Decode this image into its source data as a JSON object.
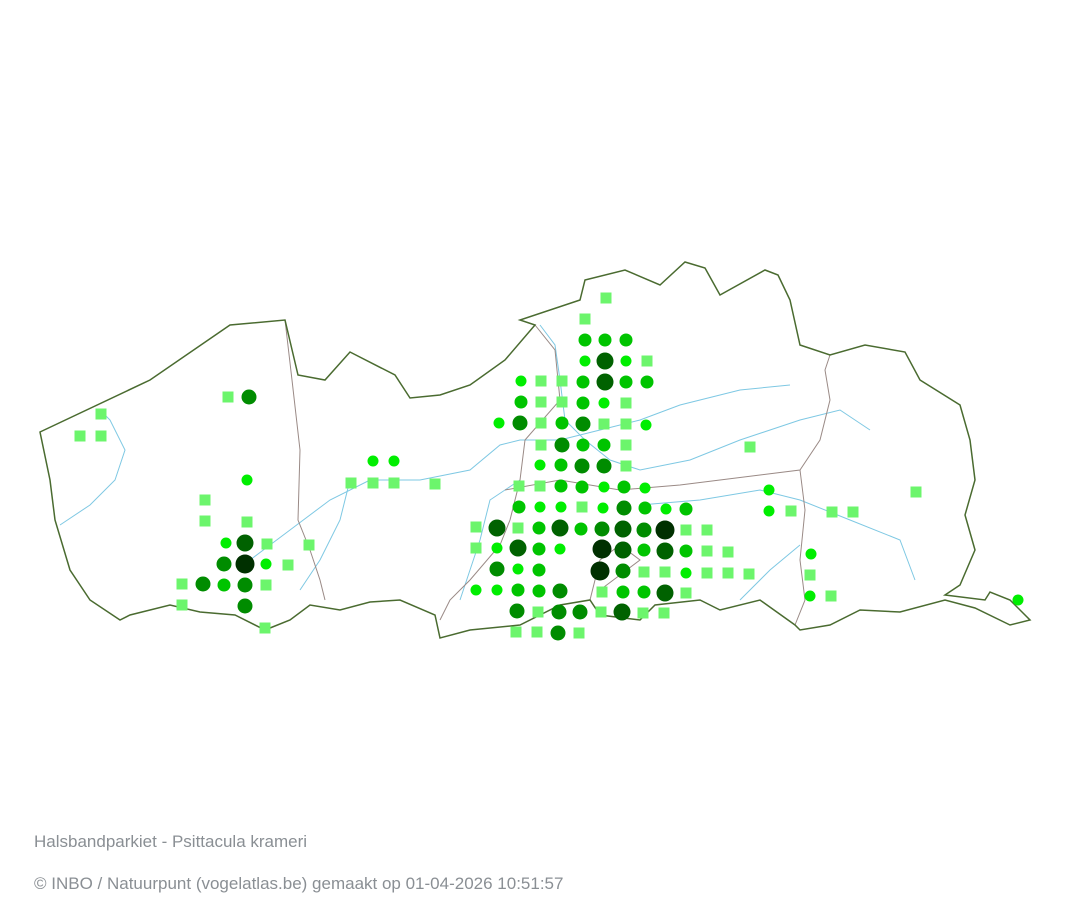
{
  "map": {
    "species_title": "Halsbandparkiet - Psittacula krameri",
    "credit": "© INBO / Natuurpunt (vogelatlas.be) gemaakt op 01-04-2026 10:51:57",
    "colors": {
      "border": "#4a6b30",
      "province_border": "#9a8a86",
      "river": "#7ec8e3",
      "square_marker": "#6cf56c",
      "level_1": "#00ee00",
      "level_2": "#00c400",
      "level_3": "#008c00",
      "level_4": "#006200",
      "level_5": "#003000"
    },
    "marker_types": [
      "square",
      "level_1",
      "level_2",
      "level_3",
      "level_4",
      "level_5"
    ]
  }
}
